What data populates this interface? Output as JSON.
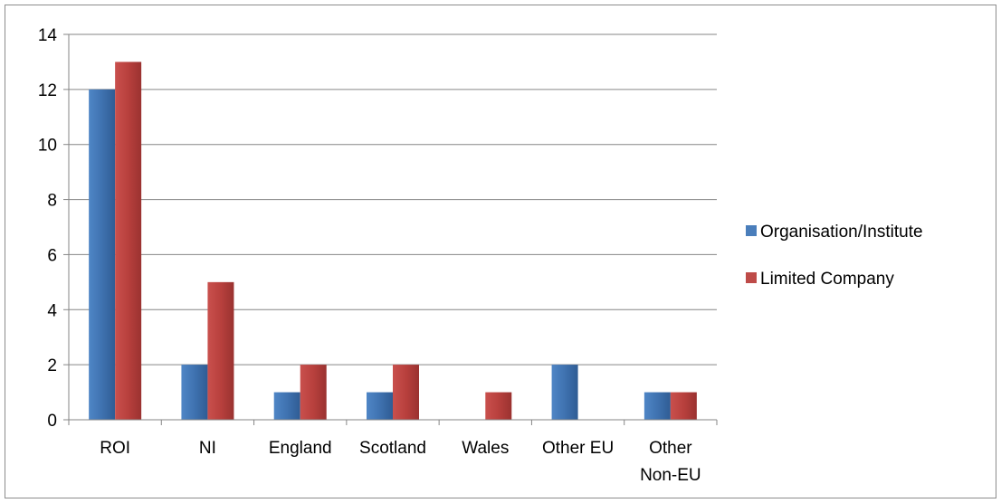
{
  "chart_data": {
    "type": "bar",
    "title": "",
    "xlabel": "",
    "ylabel": "",
    "categories": [
      [
        "ROI"
      ],
      [
        "NI"
      ],
      [
        "England"
      ],
      [
        "Scotland"
      ],
      [
        "Wales"
      ],
      [
        "Other EU"
      ],
      [
        "Other",
        "Non-EU"
      ]
    ],
    "series": [
      {
        "name": "Organisation/Institute",
        "color": "#4a7ebb",
        "values": [
          12,
          2,
          1,
          1,
          0,
          2,
          1
        ]
      },
      {
        "name": "Limited Company",
        "color": "#be4b48",
        "values": [
          13,
          5,
          2,
          2,
          1,
          0,
          1
        ]
      }
    ],
    "ylim": [
      0,
      14
    ],
    "yticks": [
      0,
      2,
      4,
      6,
      8,
      10,
      12,
      14
    ],
    "grid": true,
    "legend_position": "right"
  }
}
